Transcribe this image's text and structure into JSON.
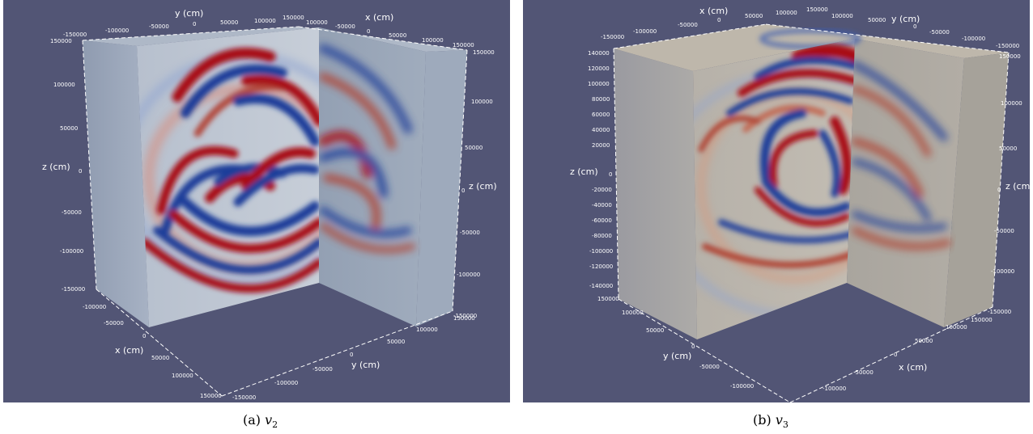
{
  "panel_a": {
    "caption_label": "(a)",
    "caption_var": "v",
    "caption_sub": "2",
    "axes": {
      "y_top": "y (cm)",
      "x_top": "x (cm)",
      "z_left": "z (cm)",
      "z_right": "z (cm)",
      "x_bottom": "x (cm)",
      "y_bottom": "y (cm)"
    },
    "ticks": {
      "top_y": [
        "-150000",
        "-100000",
        "-50000",
        "0",
        "50000",
        "100000",
        "150000"
      ],
      "top_x": [
        "100000",
        "-50000",
        "0",
        "50000",
        "100000",
        "150000"
      ],
      "left_z": [
        "150000",
        "100000",
        "50000",
        "0",
        "-50000",
        "-100000",
        "-150000"
      ],
      "right_z": [
        "150000",
        "100000",
        "50000",
        "0",
        "-50000",
        "-100000",
        "-150000"
      ],
      "bottom_x": [
        "-100000",
        "-50000",
        "0",
        "50000",
        "100000",
        "150000"
      ],
      "bottom_y": [
        "-150000",
        "-100000",
        "-50000",
        "0",
        "50000",
        "100000",
        "150000"
      ]
    }
  },
  "panel_b": {
    "caption_label": "(b)",
    "caption_var": "v",
    "caption_sub": "3",
    "axes": {
      "x_top": "x (cm)",
      "y_top": "y (cm)",
      "z_left": "z (cm)",
      "z_right": "z (cm)",
      "y_bottom": "y (cm)",
      "x_bottom": "x (cm)"
    },
    "ticks": {
      "top_x": [
        "-150000",
        "-100000",
        "-50000",
        "0",
        "50000",
        "100000",
        "150000"
      ],
      "top_y": [
        "100000",
        "50000",
        "0",
        "-50000",
        "-100000",
        "-150000"
      ],
      "left_z": [
        "140000",
        "120000",
        "100000",
        "80000",
        "60000",
        "40000",
        "20000",
        "0",
        "-20000",
        "-40000",
        "-60000",
        "-80000",
        "-100000",
        "-120000",
        "-140000"
      ],
      "right_z": [
        "150000",
        "100000",
        "50000",
        "0",
        "-50000",
        "-100000",
        "-150000"
      ],
      "bottom_y": [
        "150000",
        "100000",
        "50000",
        "0",
        "-50000",
        "-100000"
      ],
      "bottom_x": [
        "150000",
        "100000",
        "50000",
        "0",
        "-50000",
        "-100000"
      ]
    }
  },
  "colors": {
    "background": "#525575",
    "positive": "#a80f18",
    "negative": "#1c3c9a"
  }
}
